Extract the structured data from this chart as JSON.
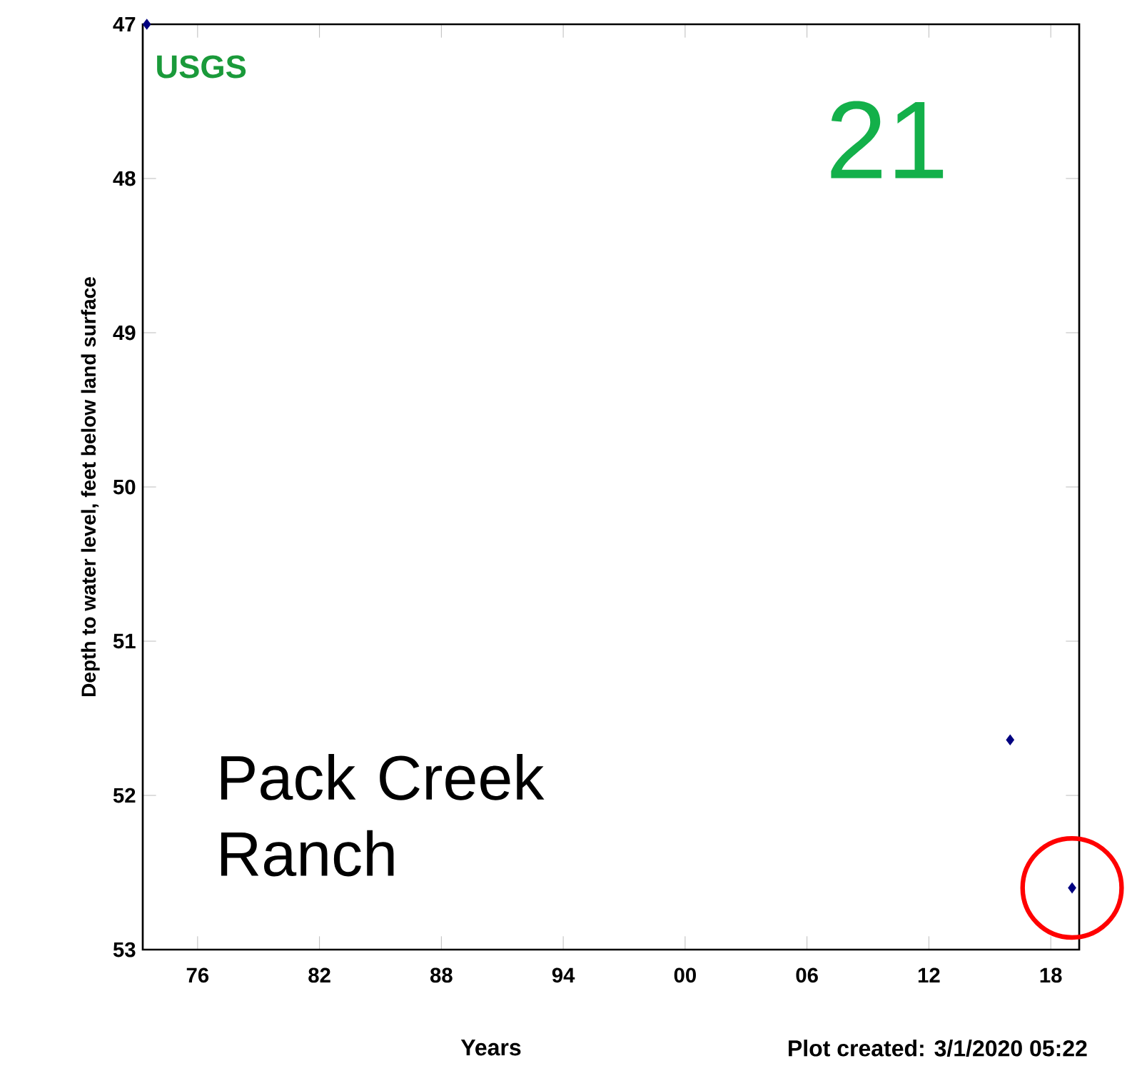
{
  "chart_data": {
    "type": "scatter",
    "xlabel": "Years",
    "ylabel": "Depth to water level, feet below land surface",
    "x": [
      1973.5,
      2016.0,
      2019.05
    ],
    "values": [
      47.0,
      51.64,
      52.6
    ],
    "color": "#000080",
    "marker": "diamond",
    "xlim": [
      1973.3,
      2019.4
    ],
    "xticks": [
      {
        "value": 1976,
        "label": "76"
      },
      {
        "value": 1982,
        "label": "82"
      },
      {
        "value": 1988,
        "label": "88"
      },
      {
        "value": 1994,
        "label": "94"
      },
      {
        "value": 2000,
        "label": "00"
      },
      {
        "value": 2006,
        "label": "06"
      },
      {
        "value": 2012,
        "label": "12"
      },
      {
        "value": 2018,
        "label": "18"
      }
    ],
    "ylim": [
      53,
      47
    ],
    "yticks": [
      47,
      48,
      49,
      50,
      51,
      52,
      53
    ],
    "annotations": [
      "USGS",
      "21",
      "Pack Creek Ranch",
      "Plot created: 3/1/2020 05:22"
    ]
  }
}
